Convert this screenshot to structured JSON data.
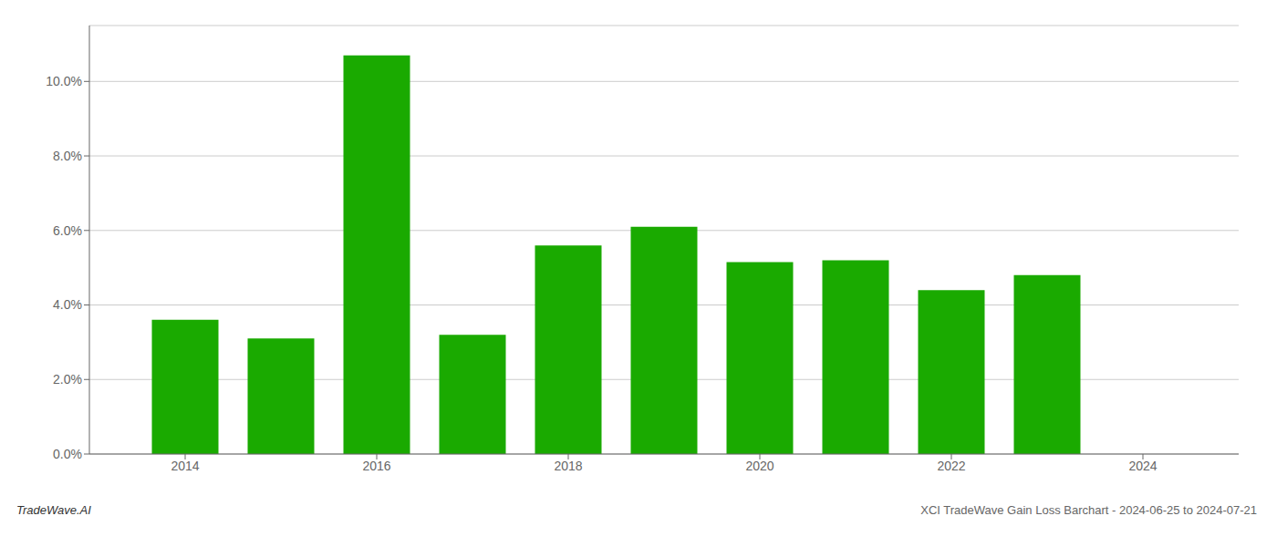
{
  "chart_data": {
    "type": "bar",
    "x": [
      2014,
      2015,
      2016,
      2017,
      2018,
      2019,
      2020,
      2021,
      2022,
      2023
    ],
    "values": [
      0.036,
      0.031,
      0.107,
      0.032,
      0.056,
      0.061,
      0.0515,
      0.052,
      0.044,
      0.048
    ],
    "color": "#1aaa00",
    "xlim": [
      2013.0,
      2025.0
    ],
    "xticks": [
      2014,
      2016,
      2018,
      2020,
      2022,
      2024
    ],
    "ylim": [
      0,
      0.115
    ],
    "yticks": [
      {
        "value": 0.0,
        "label": "0.0%"
      },
      {
        "value": 0.02,
        "label": "2.0%"
      },
      {
        "value": 0.04,
        "label": "4.0%"
      },
      {
        "value": 0.06,
        "label": "6.0%"
      },
      {
        "value": 0.08,
        "label": "8.0%"
      },
      {
        "value": 0.1,
        "label": "10.0%"
      }
    ],
    "grid": true,
    "annotations": [
      "TradeWave.AI",
      "XCI TradeWave Gain Loss Barchart - 2024-06-25 to 2024-07-21"
    ]
  }
}
